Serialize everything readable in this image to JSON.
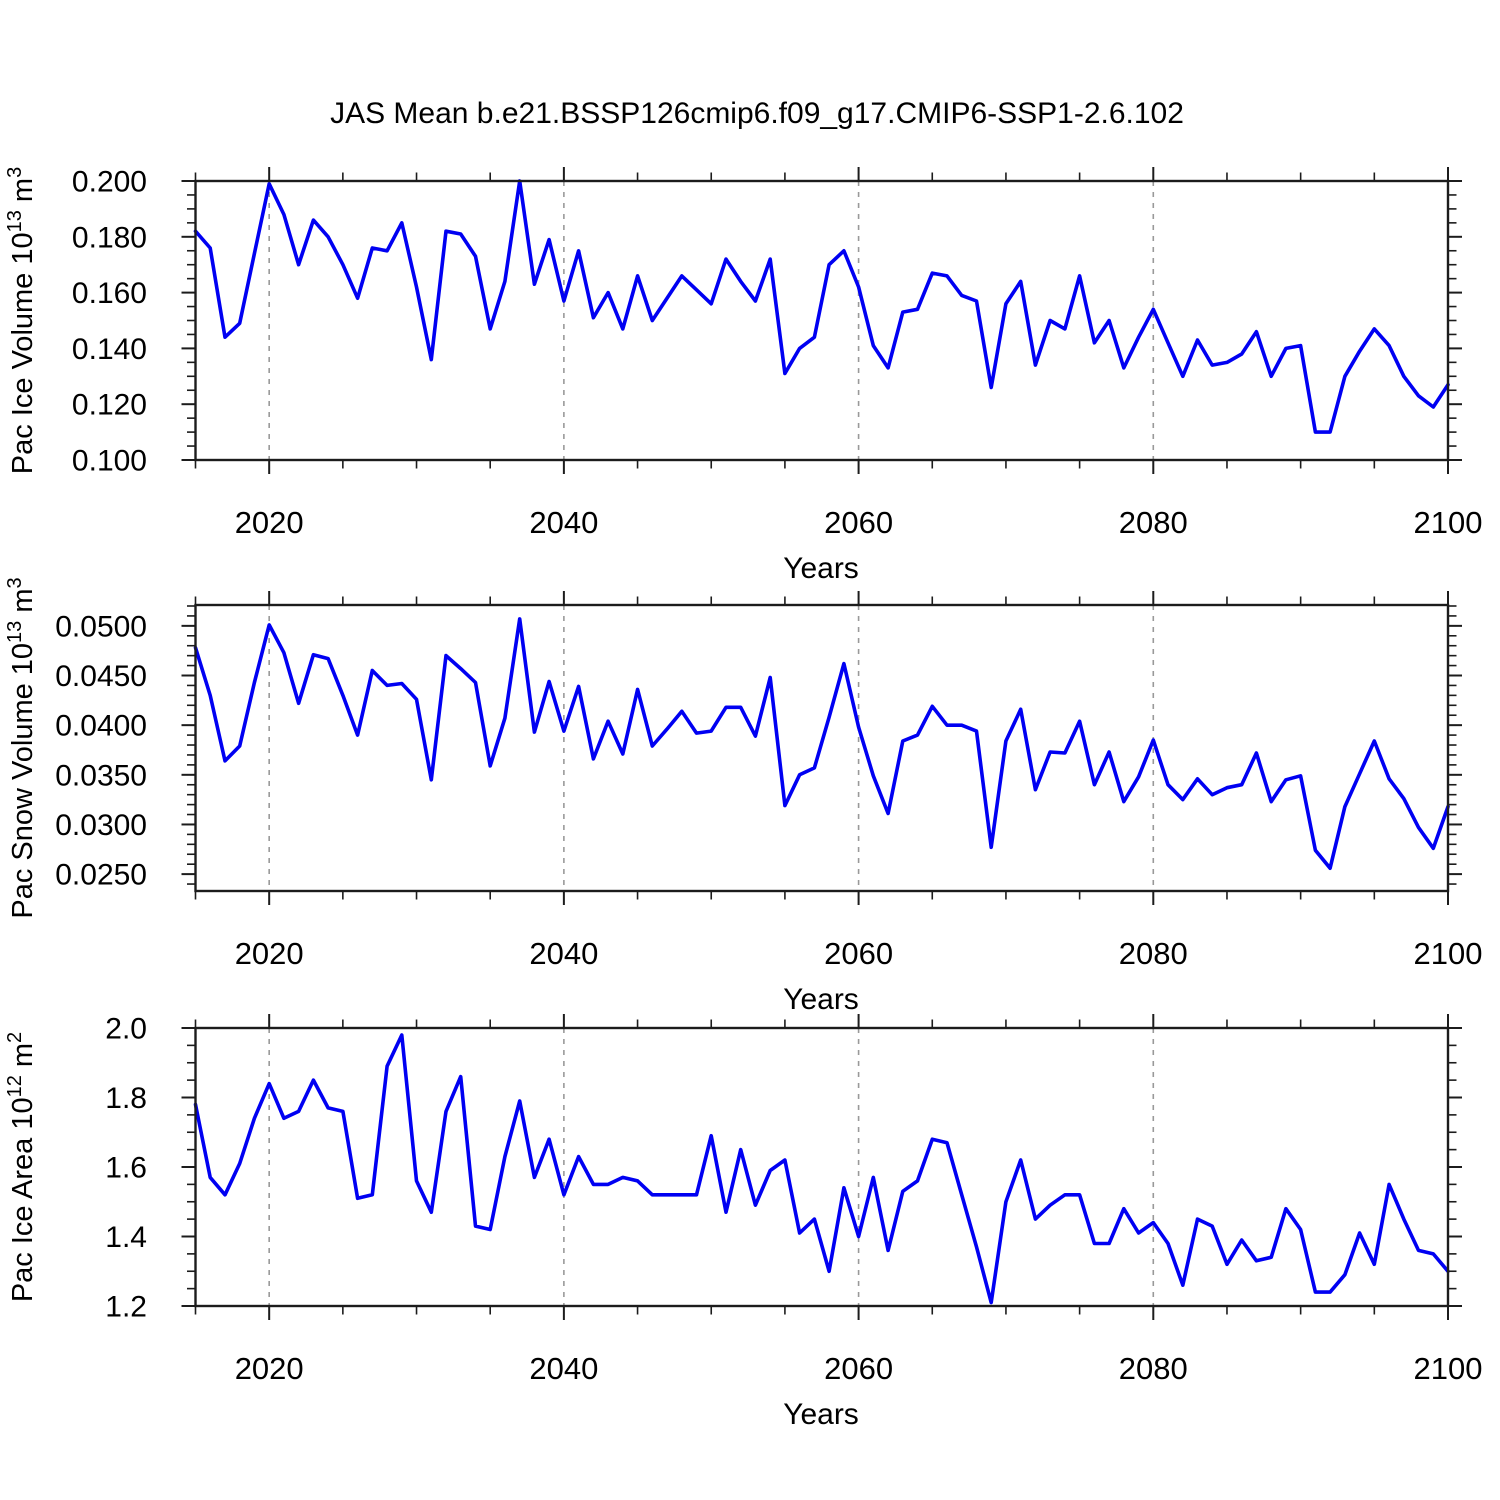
{
  "title": "JAS Mean b.e21.BSSP126cmip6.f09_g17.CMIP6-SSP1-2.6.102",
  "line_color": "#0000f2",
  "grid_color": "#999999",
  "axis_color": "#1c1c1c",
  "background_color": "#ffffff",
  "chart_data": [
    {
      "type": "line",
      "title": "JAS Mean b.e21.BSSP126cmip6.f09_g17.CMIP6-SSP1-2.6.102",
      "xlabel": "Years",
      "ylabel": "Pac Ice Volume 10^13 m^3",
      "ylabel_parts": [
        {
          "text": "Pac Ice Volume 10",
          "sup": false
        },
        {
          "text": "13",
          "sup": true
        },
        {
          "text": " m",
          "sup": false
        },
        {
          "text": "3",
          "sup": true
        }
      ],
      "x_start": 2015,
      "x_end": 2100,
      "x_step": 1,
      "x_major_ticks": [
        2020,
        2040,
        2060,
        2080,
        2100
      ],
      "x_tick_labels": [
        "2020",
        "2040",
        "2060",
        "2080",
        "2100"
      ],
      "x_minor_step": 5,
      "gridlines_x": [
        2020,
        2040,
        2060,
        2080
      ],
      "grid_on": true,
      "legend": "none",
      "ylim": [
        0.1,
        0.2
      ],
      "y_major_ticks": [
        0.1,
        0.12,
        0.14,
        0.16,
        0.18,
        0.2
      ],
      "y_tick_labels": [
        "0.100",
        "0.120",
        "0.140",
        "0.160",
        "0.180",
        "0.200"
      ],
      "y_minor_step": 0.005,
      "values": [
        0.182,
        0.176,
        0.144,
        0.149,
        0.174,
        0.199,
        0.188,
        0.17,
        0.186,
        0.18,
        0.17,
        0.158,
        0.176,
        0.175,
        0.185,
        0.162,
        0.136,
        0.182,
        0.181,
        0.173,
        0.147,
        0.164,
        0.2,
        0.163,
        0.179,
        0.157,
        0.175,
        0.151,
        0.16,
        0.147,
        0.166,
        0.15,
        0.158,
        0.166,
        0.161,
        0.156,
        0.172,
        0.164,
        0.157,
        0.172,
        0.131,
        0.14,
        0.144,
        0.17,
        0.175,
        0.162,
        0.141,
        0.133,
        0.153,
        0.154,
        0.167,
        0.166,
        0.159,
        0.157,
        0.126,
        0.156,
        0.164,
        0.134,
        0.15,
        0.147,
        0.166,
        0.142,
        0.15,
        0.133,
        0.144,
        0.154,
        0.142,
        0.13,
        0.143,
        0.134,
        0.135,
        0.138,
        0.146,
        0.13,
        0.14,
        0.141,
        0.11,
        0.11,
        0.13,
        0.139,
        0.147,
        0.141,
        0.13,
        0.123,
        0.119,
        0.127
      ]
    },
    {
      "type": "line",
      "title": "",
      "xlabel": "Years",
      "ylabel": "Pac Snow Volume 10^13 m^3",
      "ylabel_parts": [
        {
          "text": "Pac Snow Volume 10",
          "sup": false
        },
        {
          "text": "13",
          "sup": true
        },
        {
          "text": " m",
          "sup": false
        },
        {
          "text": "3",
          "sup": true
        }
      ],
      "x_start": 2015,
      "x_end": 2100,
      "x_step": 1,
      "x_major_ticks": [
        2020,
        2040,
        2060,
        2080,
        2100
      ],
      "x_tick_labels": [
        "2020",
        "2040",
        "2060",
        "2080",
        "2100"
      ],
      "x_minor_step": 5,
      "gridlines_x": [
        2020,
        2040,
        2060,
        2080
      ],
      "grid_on": true,
      "legend": "none",
      "ylim": [
        0.0233,
        0.0521
      ],
      "y_major_ticks": [
        0.025,
        0.03,
        0.035,
        0.04,
        0.045,
        0.05
      ],
      "y_tick_labels": [
        "0.0250",
        "0.0300",
        "0.0350",
        "0.0400",
        "0.0450",
        "0.0500"
      ],
      "y_minor_step": 0.001,
      "values": [
        0.0478,
        0.043,
        0.0364,
        0.0379,
        0.0443,
        0.0501,
        0.0473,
        0.0422,
        0.0471,
        0.0467,
        0.043,
        0.039,
        0.0455,
        0.044,
        0.0442,
        0.0426,
        0.0345,
        0.047,
        0.0457,
        0.0443,
        0.0359,
        0.0407,
        0.0507,
        0.0393,
        0.0444,
        0.0394,
        0.0439,
        0.0366,
        0.0404,
        0.0371,
        0.0436,
        0.0379,
        0.0396,
        0.0414,
        0.0392,
        0.0394,
        0.0418,
        0.0418,
        0.0389,
        0.0448,
        0.0319,
        0.035,
        0.0357,
        0.0408,
        0.0462,
        0.0398,
        0.0349,
        0.0311,
        0.0384,
        0.039,
        0.0419,
        0.04,
        0.04,
        0.0394,
        0.0277,
        0.0384,
        0.0416,
        0.0335,
        0.0373,
        0.0372,
        0.0404,
        0.034,
        0.0373,
        0.0323,
        0.0348,
        0.0385,
        0.034,
        0.0325,
        0.0346,
        0.033,
        0.0337,
        0.034,
        0.0372,
        0.0323,
        0.0345,
        0.0349,
        0.0274,
        0.0256,
        0.0318,
        0.0351,
        0.0384,
        0.0346,
        0.0326,
        0.0297,
        0.0276,
        0.0318
      ]
    },
    {
      "type": "line",
      "title": "",
      "xlabel": "Years",
      "ylabel": "Pac Ice Area 10^12 m^2",
      "ylabel_parts": [
        {
          "text": "Pac Ice Area 10",
          "sup": false
        },
        {
          "text": "12",
          "sup": true
        },
        {
          "text": " m",
          "sup": false
        },
        {
          "text": "2",
          "sup": true
        }
      ],
      "x_start": 2015,
      "x_end": 2100,
      "x_step": 1,
      "x_major_ticks": [
        2020,
        2040,
        2060,
        2080,
        2100
      ],
      "x_tick_labels": [
        "2020",
        "2040",
        "2060",
        "2080",
        "2100"
      ],
      "x_minor_step": 5,
      "gridlines_x": [
        2020,
        2040,
        2060,
        2080
      ],
      "grid_on": true,
      "legend": "none",
      "ylim": [
        1.2,
        2.0
      ],
      "y_major_ticks": [
        1.2,
        1.4,
        1.6,
        1.8,
        2.0
      ],
      "y_tick_labels": [
        "1.2",
        "1.4",
        "1.6",
        "1.8",
        "2.0"
      ],
      "y_minor_step": 0.05,
      "values": [
        1.78,
        1.57,
        1.52,
        1.61,
        1.74,
        1.84,
        1.74,
        1.76,
        1.85,
        1.77,
        1.76,
        1.51,
        1.52,
        1.89,
        1.98,
        1.56,
        1.47,
        1.76,
        1.86,
        1.43,
        1.42,
        1.63,
        1.79,
        1.57,
        1.68,
        1.52,
        1.63,
        1.55,
        1.55,
        1.57,
        1.56,
        1.52,
        1.52,
        1.52,
        1.52,
        1.69,
        1.47,
        1.65,
        1.49,
        1.59,
        1.62,
        1.41,
        1.45,
        1.3,
        1.54,
        1.4,
        1.57,
        1.36,
        1.53,
        1.56,
        1.68,
        1.67,
        1.52,
        1.37,
        1.21,
        1.5,
        1.62,
        1.45,
        1.49,
        1.52,
        1.52,
        1.38,
        1.38,
        1.48,
        1.41,
        1.44,
        1.38,
        1.26,
        1.45,
        1.43,
        1.32,
        1.39,
        1.33,
        1.34,
        1.48,
        1.42,
        1.24,
        1.24,
        1.29,
        1.41,
        1.32,
        1.55,
        1.45,
        1.36,
        1.35,
        1.3
      ]
    }
  ]
}
